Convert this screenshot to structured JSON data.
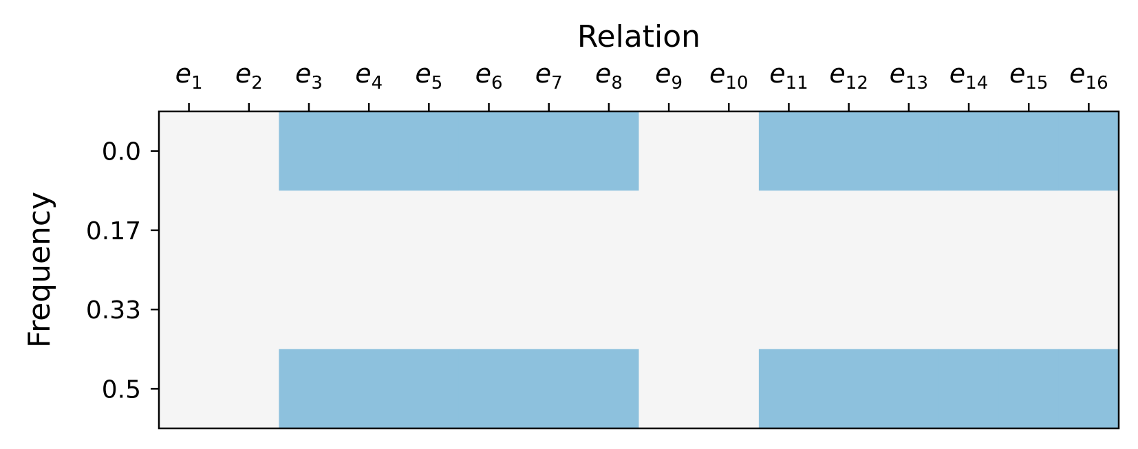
{
  "chart_data": {
    "type": "heatmap",
    "xlabel": "Relation",
    "ylabel": "Frequency",
    "x_ticks": [
      {
        "base": "e",
        "sub": "1"
      },
      {
        "base": "e",
        "sub": "2"
      },
      {
        "base": "e",
        "sub": "3"
      },
      {
        "base": "e",
        "sub": "4"
      },
      {
        "base": "e",
        "sub": "5"
      },
      {
        "base": "e",
        "sub": "6"
      },
      {
        "base": "e",
        "sub": "7"
      },
      {
        "base": "e",
        "sub": "8"
      },
      {
        "base": "e",
        "sub": "9"
      },
      {
        "base": "e",
        "sub": "10"
      },
      {
        "base": "e",
        "sub": "11"
      },
      {
        "base": "e",
        "sub": "12"
      },
      {
        "base": "e",
        "sub": "13"
      },
      {
        "base": "e",
        "sub": "14"
      },
      {
        "base": "e",
        "sub": "15"
      },
      {
        "base": "e",
        "sub": "16"
      }
    ],
    "y_ticks": [
      "0.0",
      "0.17",
      "0.33",
      "0.5"
    ],
    "xlabel_position": "top",
    "grid": false,
    "legend": "none",
    "colors": {
      "on": "#8dc1dd",
      "off": "#f5f5f5"
    },
    "cells": [
      [
        0,
        0,
        1,
        1,
        1,
        1,
        1,
        1,
        0,
        0,
        1,
        1,
        1,
        1,
        1,
        1
      ],
      [
        0,
        0,
        0,
        0,
        0,
        0,
        0,
        0,
        0,
        0,
        0,
        0,
        0,
        0,
        0,
        0
      ],
      [
        0,
        0,
        0,
        0,
        0,
        0,
        0,
        0,
        0,
        0,
        0,
        0,
        0,
        0,
        0,
        0
      ],
      [
        0,
        0,
        1,
        1,
        1,
        1,
        1,
        1,
        0,
        0,
        1,
        1,
        1,
        1,
        1,
        1
      ]
    ]
  }
}
